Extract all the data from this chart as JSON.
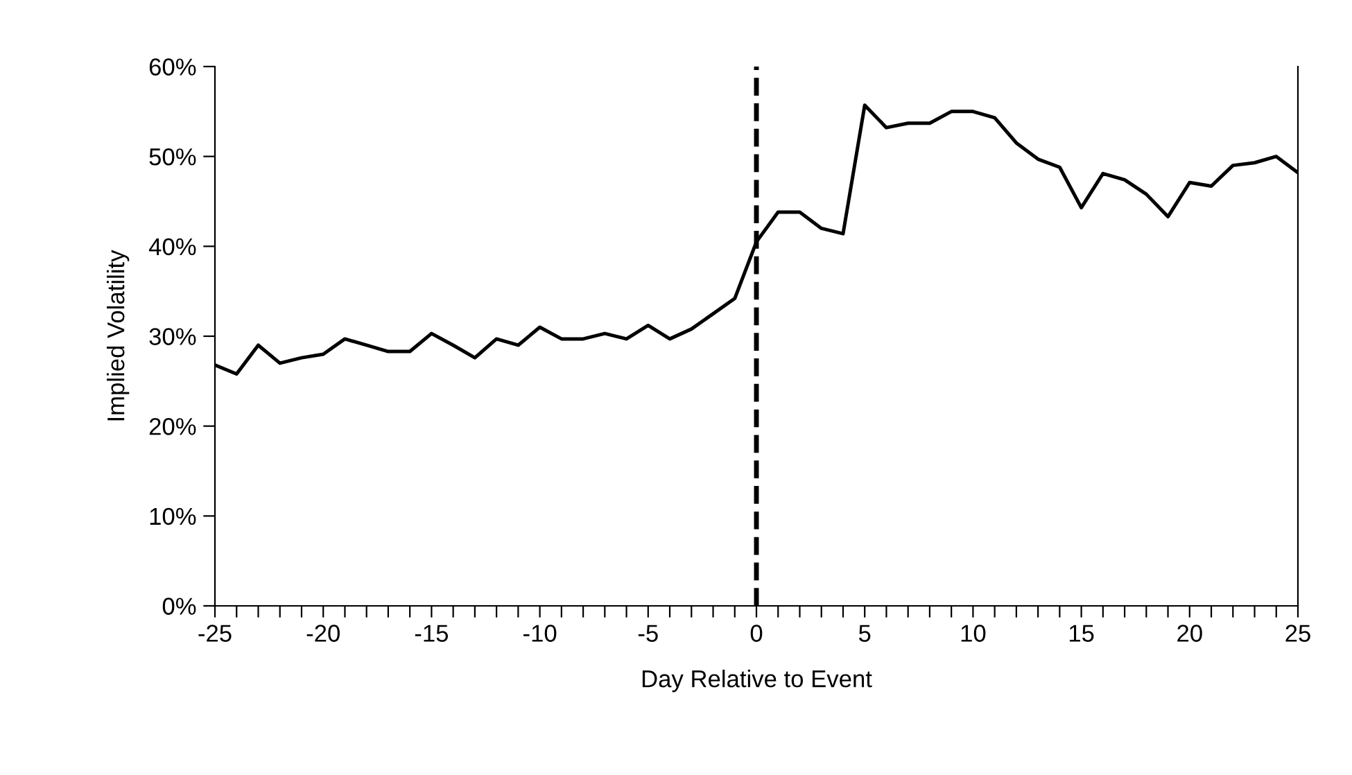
{
  "chart_data": {
    "type": "line",
    "xlabel": "Day Relative to Event",
    "ylabel": "Implied Volatility",
    "x": [
      -25,
      -24,
      -23,
      -22,
      -21,
      -20,
      -19,
      -18,
      -17,
      -16,
      -15,
      -14,
      -13,
      -12,
      -11,
      -10,
      -9,
      -8,
      -7,
      -6,
      -5,
      -4,
      -3,
      -2,
      -1,
      0,
      1,
      2,
      3,
      4,
      5,
      6,
      7,
      8,
      9,
      10,
      11,
      12,
      13,
      14,
      15,
      16,
      17,
      18,
      19,
      20,
      21,
      22,
      23,
      24,
      25
    ],
    "series": [
      {
        "color": "#000000",
        "values": [
          26.8,
          25.8,
          29,
          27,
          27.6,
          28,
          29.7,
          29,
          28.3,
          28.3,
          30.3,
          29,
          27.6,
          29.7,
          29,
          31,
          29.7,
          29.7,
          30.3,
          29.7,
          31.2,
          29.7,
          30.8,
          32.5,
          34.2,
          40.5,
          43.8,
          43.8,
          42,
          41.4,
          55.7,
          53.2,
          53.7,
          53.7,
          55,
          55,
          54.3,
          51.5,
          49.7,
          48.8,
          44.3,
          48.1,
          47.4,
          45.8,
          43.3,
          47.1,
          46.7,
          49,
          49.3,
          50,
          48.2
        ]
      }
    ],
    "xlim": [
      -25,
      25
    ],
    "xticks": [
      -25,
      {
        "value": -24,
        "label": null
      },
      {
        "value": -23,
        "label": null
      },
      {
        "value": -22,
        "label": null
      },
      {
        "value": -21,
        "label": null
      },
      -20,
      {
        "value": -19,
        "label": null
      },
      {
        "value": -18,
        "label": null
      },
      {
        "value": -17,
        "label": null
      },
      {
        "value": -16,
        "label": null
      },
      -15,
      {
        "value": -14,
        "label": null
      },
      {
        "value": -13,
        "label": null
      },
      {
        "value": -12,
        "label": null
      },
      {
        "value": -11,
        "label": null
      },
      -10,
      {
        "value": -9,
        "label": null
      },
      {
        "value": -8,
        "label": null
      },
      {
        "value": -7,
        "label": null
      },
      {
        "value": -6,
        "label": null
      },
      -5,
      {
        "value": -4,
        "label": null
      },
      {
        "value": -3,
        "label": null
      },
      {
        "value": -2,
        "label": null
      },
      {
        "value": -1,
        "label": null
      },
      0,
      {
        "value": 1,
        "label": null
      },
      {
        "value": 2,
        "label": null
      },
      {
        "value": 3,
        "label": null
      },
      {
        "value": 4,
        "label": null
      },
      5,
      {
        "value": 6,
        "label": null
      },
      {
        "value": 7,
        "label": null
      },
      {
        "value": 8,
        "label": null
      },
      {
        "value": 9,
        "label": null
      },
      10,
      {
        "value": 11,
        "label": null
      },
      {
        "value": 12,
        "label": null
      },
      {
        "value": 13,
        "label": null
      },
      {
        "value": 14,
        "label": null
      },
      15,
      {
        "value": 16,
        "label": null
      },
      {
        "value": 17,
        "label": null
      },
      {
        "value": 18,
        "label": null
      },
      {
        "value": 19,
        "label": null
      },
      20,
      {
        "value": 21,
        "label": null
      },
      {
        "value": 22,
        "label": null
      },
      {
        "value": 23,
        "label": null
      },
      {
        "value": 24,
        "label": null
      },
      25
    ],
    "ylim": [
      0,
      60
    ],
    "yticks": [
      {
        "value": 0,
        "label": "0%"
      },
      {
        "value": 10,
        "label": "10%"
      },
      {
        "value": 20,
        "label": "20%"
      },
      {
        "value": 30,
        "label": "30%"
      },
      {
        "value": 40,
        "label": "40%"
      },
      {
        "value": 50,
        "label": "50%"
      },
      {
        "value": 60,
        "label": "60%"
      }
    ],
    "ref_lines": [
      {
        "axis": "x",
        "value": 0,
        "color": "#000000",
        "line_style": "dashed"
      }
    ],
    "grid": false,
    "legend": false,
    "marker": "none",
    "line_style": "solid"
  }
}
